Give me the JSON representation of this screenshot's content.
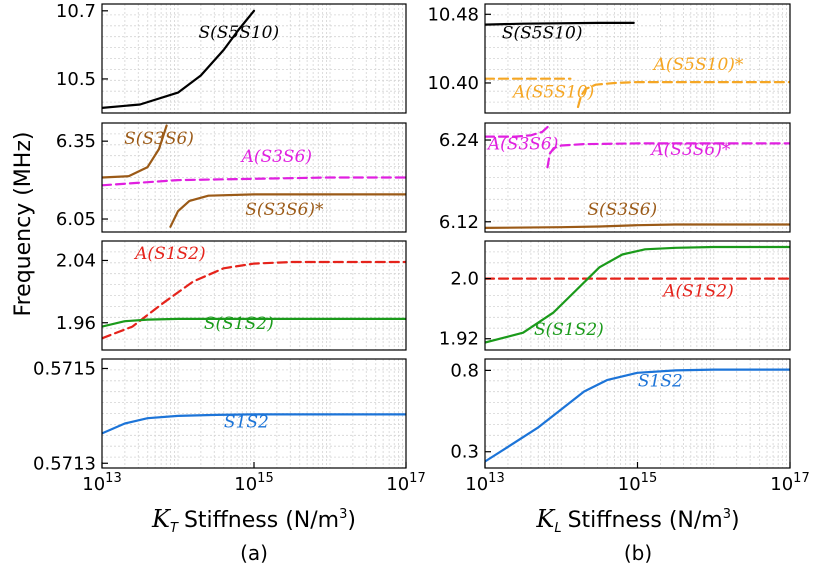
{
  "figure": {
    "ylabel": "Frequency (MHz)",
    "xlabel_a_symbol": "K",
    "xlabel_a_sub": "T",
    "xlabel_b_symbol": "K",
    "xlabel_b_sub": "L",
    "xlabel_rest": "Stiffness (N/m",
    "xlabel_sup": "3",
    "xlabel_close": ")",
    "caption_a": "(a)",
    "caption_b": "(b)",
    "x_tick_labels": [
      {
        "base": "10",
        "exp": "13"
      },
      {
        "base": "10",
        "exp": "15"
      },
      {
        "base": "10",
        "exp": "17"
      }
    ]
  },
  "colors": {
    "black": "#000000",
    "orange": "#f5a623",
    "magenta": "#e020e0",
    "brown": "#9b5a17",
    "red": "#e5231b",
    "green": "#1a9a1a",
    "blue": "#1c74d8"
  },
  "chart_data": [
    {
      "id": "a1",
      "type": "line",
      "xscale": "log",
      "xlim": [
        13,
        17
      ],
      "ylim": [
        10.4,
        10.72
      ],
      "yticks": [
        {
          "v": 10.5,
          "t": "10.5"
        },
        {
          "v": 10.7,
          "t": "10.7"
        }
      ],
      "series": [
        {
          "name": "S(S5S10)",
          "color": "black",
          "dash": false,
          "x": [
            13,
            13.5,
            14,
            14.3,
            14.6,
            14.8,
            15.0
          ],
          "y": [
            10.415,
            10.425,
            10.46,
            10.51,
            10.585,
            10.645,
            10.7
          ]
        }
      ],
      "annotations": [
        {
          "text": "S(S5S10)",
          "color": "black",
          "x": 14.8,
          "y": 10.62
        }
      ]
    },
    {
      "id": "a2",
      "type": "line",
      "xscale": "log",
      "xlim": [
        13,
        17
      ],
      "ylim": [
        6.0,
        6.42
      ],
      "yticks": [
        {
          "v": 6.05,
          "t": "6.05"
        },
        {
          "v": 6.35,
          "t": "6.35"
        }
      ],
      "series": [
        {
          "name": "S(S3S6)",
          "color": "brown",
          "dash": false,
          "x": [
            13,
            13.35,
            13.6,
            13.75,
            13.85
          ],
          "y": [
            6.21,
            6.215,
            6.25,
            6.32,
            6.41
          ]
        },
        {
          "name": "A(S3S6)",
          "color": "magenta",
          "dash": true,
          "x": [
            13,
            13.5,
            14,
            15,
            16,
            17
          ],
          "y": [
            6.18,
            6.19,
            6.2,
            6.205,
            6.21,
            6.21
          ]
        },
        {
          "name": "S(S3S6)*",
          "color": "brown",
          "dash": false,
          "x": [
            13.9,
            14.0,
            14.15,
            14.4,
            15,
            16,
            17
          ],
          "y": [
            6.02,
            6.08,
            6.12,
            6.14,
            6.145,
            6.145,
            6.145
          ]
        }
      ],
      "annotations": [
        {
          "text": "S(S3S6)",
          "color": "brown",
          "x": 13.75,
          "y": 6.34
        },
        {
          "text": "A(S3S6)",
          "color": "magenta",
          "x": 15.3,
          "y": 6.27
        },
        {
          "text": "S(S3S6)*",
          "color": "brown",
          "x": 15.4,
          "y": 6.065
        }
      ]
    },
    {
      "id": "a3",
      "type": "line",
      "xscale": "log",
      "xlim": [
        13,
        17
      ],
      "ylim": [
        1.925,
        2.065
      ],
      "yticks": [
        {
          "v": 1.96,
          "t": "1.96"
        },
        {
          "v": 2.04,
          "t": "2.04"
        }
      ],
      "series": [
        {
          "name": "A(S1S2)",
          "color": "red",
          "dash": true,
          "x": [
            13,
            13.4,
            13.8,
            14.2,
            14.6,
            15.0,
            15.5,
            16,
            17
          ],
          "y": [
            1.94,
            1.955,
            1.985,
            2.013,
            2.03,
            2.036,
            2.038,
            2.038,
            2.038
          ]
        },
        {
          "name": "S(S1S2)",
          "color": "green",
          "dash": false,
          "x": [
            13,
            13.3,
            13.6,
            14,
            15,
            16,
            17
          ],
          "y": [
            1.955,
            1.962,
            1.964,
            1.965,
            1.965,
            1.965,
            1.965
          ]
        }
      ],
      "annotations": [
        {
          "text": "A(S1S2)",
          "color": "red",
          "x": 13.9,
          "y": 2.042
        },
        {
          "text": "S(S1S2)",
          "color": "green",
          "x": 14.8,
          "y": 1.952
        }
      ]
    },
    {
      "id": "a4",
      "type": "line",
      "xscale": "log",
      "xlim": [
        13,
        17
      ],
      "ylim": [
        0.57129,
        0.57152
      ],
      "yticks": [
        {
          "v": 0.5713,
          "t": "0.5713"
        },
        {
          "v": 0.5715,
          "t": "0.5715"
        }
      ],
      "series": [
        {
          "name": "S1S2",
          "color": "blue",
          "dash": false,
          "x": [
            13,
            13.3,
            13.6,
            14,
            14.5,
            15,
            16,
            17
          ],
          "y": [
            0.571363,
            0.571384,
            0.571395,
            0.5714,
            0.571402,
            0.571403,
            0.571403,
            0.571403
          ]
        }
      ],
      "annotations": [
        {
          "text": "S1S2",
          "color": "blue",
          "x": 14.9,
          "y": 0.571375
        }
      ]
    },
    {
      "id": "b1",
      "type": "line",
      "xscale": "log",
      "xlim": [
        13,
        17
      ],
      "ylim": [
        10.365,
        10.492
      ],
      "yticks": [
        {
          "v": 10.4,
          "t": "10.40"
        },
        {
          "v": 10.48,
          "t": "10.48"
        }
      ],
      "series": [
        {
          "name": "S(S5S10)",
          "color": "black",
          "dash": false,
          "x": [
            13,
            13.5,
            14.5,
            14.95
          ],
          "y": [
            10.468,
            10.469,
            10.47,
            10.47
          ]
        },
        {
          "name": "A(S5S10)",
          "color": "orange",
          "dash": true,
          "x": [
            13,
            13.6,
            14.0,
            14.12
          ],
          "y": [
            10.405,
            10.405,
            10.405,
            10.405
          ]
        },
        {
          "name": "A(S5S10)*",
          "color": "orange",
          "dash": true,
          "x": [
            14.22,
            14.26,
            14.32,
            14.45,
            14.7,
            15.0,
            16,
            17
          ],
          "y": [
            10.372,
            10.385,
            10.393,
            10.398,
            10.4,
            10.401,
            10.401,
            10.401
          ]
        }
      ],
      "annotations": [
        {
          "text": "S(S5S10)",
          "color": "black",
          "x": 13.75,
          "y": 10.452
        },
        {
          "text": "A(S5S10)*",
          "color": "orange",
          "x": 15.8,
          "y": 10.415
        },
        {
          "text": "A(S5S10)",
          "color": "orange",
          "x": 13.9,
          "y": 10.383
        }
      ]
    },
    {
      "id": "b2",
      "type": "line",
      "xscale": "log",
      "xlim": [
        13,
        17
      ],
      "ylim": [
        6.105,
        6.265
      ],
      "yticks": [
        {
          "v": 6.12,
          "t": "6.12"
        },
        {
          "v": 6.24,
          "t": "6.24"
        }
      ],
      "series": [
        {
          "name": "A(S3S6)",
          "color": "magenta",
          "dash": true,
          "x": [
            13,
            13.4,
            13.6,
            13.75,
            13.85
          ],
          "y": [
            6.245,
            6.245,
            6.247,
            6.252,
            6.262
          ]
        },
        {
          "name": "A(S3S6)*",
          "color": "magenta",
          "dash": true,
          "x": [
            13.82,
            13.85,
            13.9,
            14.0,
            14.3,
            15,
            16,
            17
          ],
          "y": [
            6.2,
            6.22,
            6.228,
            6.232,
            6.234,
            6.235,
            6.235,
            6.235
          ]
        },
        {
          "name": "S(S3S6)",
          "color": "brown",
          "dash": false,
          "x": [
            13,
            14,
            14.5,
            15,
            15.5,
            16,
            17
          ],
          "y": [
            6.111,
            6.112,
            6.113,
            6.115,
            6.116,
            6.116,
            6.116
          ]
        }
      ],
      "annotations": [
        {
          "text": "A(S3S6)",
          "color": "magenta",
          "x": 13.5,
          "y": 6.226
        },
        {
          "text": "A(S3S6)*",
          "color": "magenta",
          "x": 15.7,
          "y": 6.218
        },
        {
          "text": "S(S3S6)",
          "color": "brown",
          "x": 14.8,
          "y": 6.13
        }
      ]
    },
    {
      "id": "b3",
      "type": "line",
      "xscale": "log",
      "xlim": [
        13,
        17
      ],
      "ylim": [
        1.905,
        2.05
      ],
      "yticks": [
        {
          "v": 1.92,
          "t": "1.92"
        },
        {
          "v": 2.0,
          "t": "2.0"
        }
      ],
      "series": [
        {
          "name": "A(S1S2)",
          "color": "red",
          "dash": true,
          "x": [
            13,
            14,
            15,
            16,
            17
          ],
          "y": [
            2.0,
            2.0,
            2.0,
            2.0,
            2.0
          ]
        },
        {
          "name": "S(S1S2)",
          "color": "green",
          "dash": false,
          "x": [
            13,
            13.5,
            13.9,
            14.2,
            14.5,
            14.8,
            15.1,
            15.5,
            16,
            17
          ],
          "y": [
            1.915,
            1.928,
            1.955,
            1.985,
            2.015,
            2.032,
            2.039,
            2.041,
            2.042,
            2.042
          ]
        }
      ],
      "annotations": [
        {
          "text": "A(S1S2)",
          "color": "red",
          "x": 15.8,
          "y": 1.976
        },
        {
          "text": "S(S1S2)",
          "color": "green",
          "x": 14.1,
          "y": 1.925
        }
      ]
    },
    {
      "id": "b4",
      "type": "line",
      "xscale": "log",
      "xlim": [
        13,
        17
      ],
      "ylim": [
        0.2,
        0.87
      ],
      "yticks": [
        {
          "v": 0.3,
          "t": "0.3"
        },
        {
          "v": 0.8,
          "t": "0.8"
        }
      ],
      "series": [
        {
          "name": "S1S2",
          "color": "blue",
          "dash": false,
          "x": [
            13,
            13.3,
            13.7,
            14,
            14.3,
            14.6,
            15,
            15.5,
            16,
            17
          ],
          "y": [
            0.24,
            0.33,
            0.45,
            0.56,
            0.67,
            0.74,
            0.785,
            0.8,
            0.805,
            0.805
          ]
        }
      ],
      "annotations": [
        {
          "text": "S1S2",
          "color": "blue",
          "x": 15.3,
          "y": 0.7
        }
      ]
    }
  ]
}
